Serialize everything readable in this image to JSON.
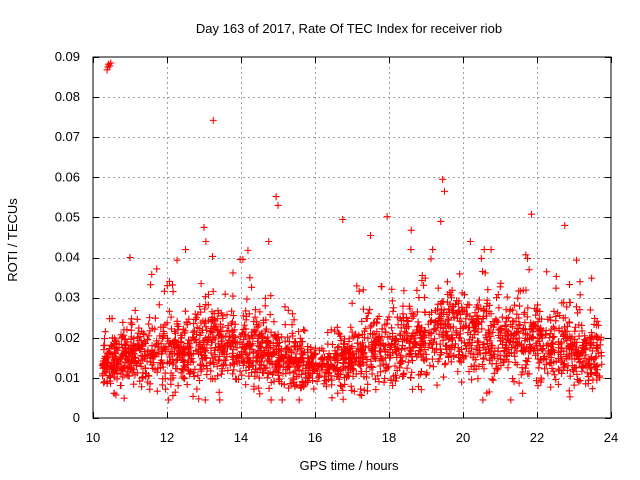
{
  "chart_data": {
    "type": "scatter",
    "title": "Day 163 of 2017, Rate Of TEC Index for receiver riob",
    "xlabel": "GPS time / hours",
    "ylabel": "ROTI / TECUs",
    "xlim": [
      10,
      24
    ],
    "ylim": [
      0,
      0.09
    ],
    "x_ticks": [
      10,
      12,
      14,
      16,
      18,
      20,
      22,
      24
    ],
    "x_tick_labels": [
      "10",
      "12",
      "14",
      "16",
      "18",
      "20",
      "22",
      "24"
    ],
    "y_ticks": [
      0,
      0.01,
      0.02,
      0.03,
      0.04,
      0.05,
      0.06,
      0.07,
      0.08,
      0.09
    ],
    "y_tick_labels": [
      "0",
      "0.01",
      "0.02",
      "0.03",
      "0.04",
      "0.05",
      "0.06",
      "0.07",
      "0.08",
      "0.09"
    ],
    "grid": true,
    "marker": "plus",
    "marker_color": "#ff0000",
    "series": [
      {
        "name": "ROTI riob",
        "x_start": 10.25,
        "x_end": 23.75,
        "point_count": 2400,
        "baseline_profile": [
          {
            "x": 10.25,
            "mean": 0.013,
            "spread": 0.006
          },
          {
            "x": 11.0,
            "mean": 0.015,
            "spread": 0.007
          },
          {
            "x": 12.0,
            "mean": 0.016,
            "spread": 0.008
          },
          {
            "x": 13.0,
            "mean": 0.018,
            "spread": 0.009
          },
          {
            "x": 14.0,
            "mean": 0.017,
            "spread": 0.009
          },
          {
            "x": 15.0,
            "mean": 0.015,
            "spread": 0.007
          },
          {
            "x": 16.0,
            "mean": 0.012,
            "spread": 0.004
          },
          {
            "x": 17.0,
            "mean": 0.015,
            "spread": 0.007
          },
          {
            "x": 18.0,
            "mean": 0.017,
            "spread": 0.009
          },
          {
            "x": 19.0,
            "mean": 0.019,
            "spread": 0.009
          },
          {
            "x": 19.8,
            "mean": 0.022,
            "spread": 0.01
          },
          {
            "x": 21.0,
            "mean": 0.019,
            "spread": 0.009
          },
          {
            "x": 22.0,
            "mean": 0.018,
            "spread": 0.009
          },
          {
            "x": 23.0,
            "mean": 0.017,
            "spread": 0.008
          },
          {
            "x": 23.75,
            "mean": 0.015,
            "spread": 0.007
          }
        ],
        "notable_points": [
          {
            "x": 10.4,
            "y": 0.0875
          },
          {
            "x": 10.42,
            "y": 0.0882
          },
          {
            "x": 10.45,
            "y": 0.0878
          },
          {
            "x": 10.38,
            "y": 0.0868
          },
          {
            "x": 10.48,
            "y": 0.0885
          },
          {
            "x": 13.25,
            "y": 0.0742
          },
          {
            "x": 19.45,
            "y": 0.0595
          },
          {
            "x": 19.5,
            "y": 0.0565
          },
          {
            "x": 14.95,
            "y": 0.0552
          },
          {
            "x": 15.0,
            "y": 0.053
          },
          {
            "x": 21.85,
            "y": 0.0508
          },
          {
            "x": 17.95,
            "y": 0.0502
          },
          {
            "x": 13.0,
            "y": 0.0475
          },
          {
            "x": 13.05,
            "y": 0.044
          },
          {
            "x": 16.75,
            "y": 0.0495
          },
          {
            "x": 18.6,
            "y": 0.0468
          },
          {
            "x": 19.4,
            "y": 0.049
          },
          {
            "x": 22.75,
            "y": 0.048
          },
          {
            "x": 11.0,
            "y": 0.04
          },
          {
            "x": 14.05,
            "y": 0.0395
          },
          {
            "x": 12.5,
            "y": 0.042
          },
          {
            "x": 20.2,
            "y": 0.044
          },
          {
            "x": 14.75,
            "y": 0.044
          },
          {
            "x": 17.5,
            "y": 0.0455
          }
        ]
      }
    ]
  }
}
